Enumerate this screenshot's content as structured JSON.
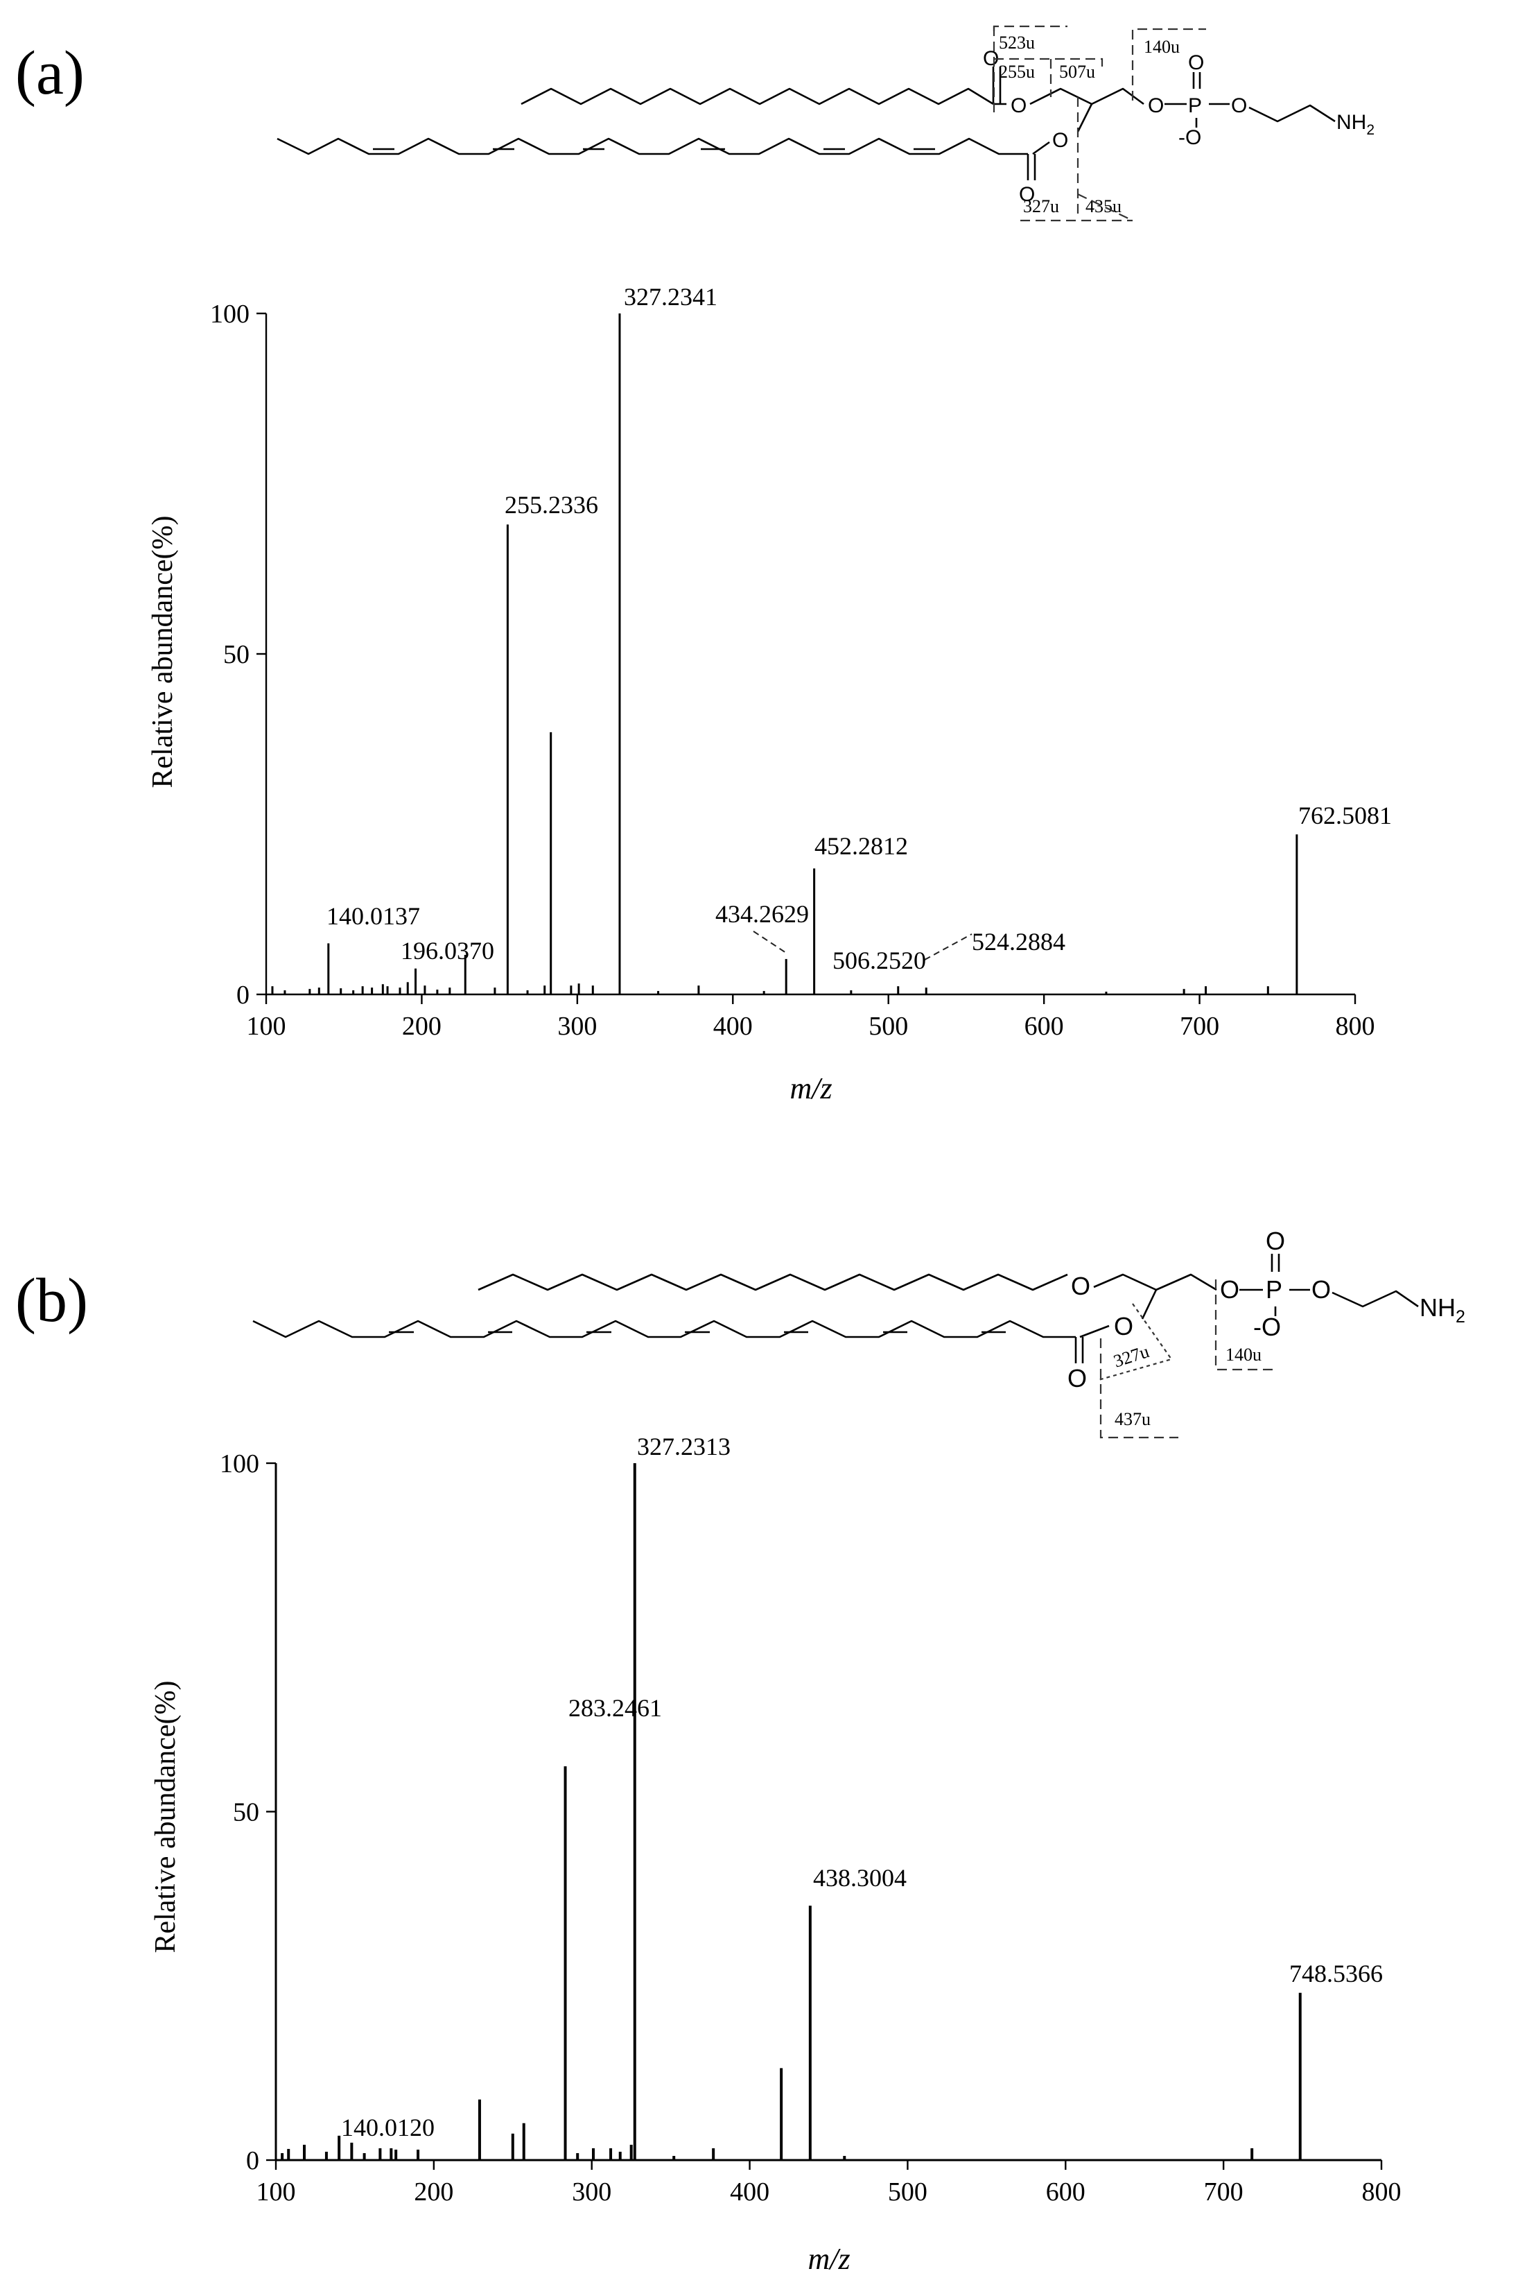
{
  "panels": [
    {
      "label": "(a)",
      "structure": {
        "fragments": [
          "523u",
          "255u",
          "507u",
          "140u",
          "327u",
          "435u"
        ],
        "atoms": {
          "carbonyl_o": "O",
          "ester_o": "O",
          "phos_o": "O",
          "p": "P",
          "o_minus": "-O",
          "o_link": "O",
          "amine": "NH",
          "amine_sub": "2"
        }
      },
      "chart_data": {
        "type": "bar",
        "xlabel": "m/z",
        "ylabel": "Relative abundance(%)",
        "xlim": [
          100,
          800
        ],
        "ylim": [
          0,
          100
        ],
        "xticks": [
          "100",
          "200",
          "300",
          "400",
          "500",
          "600",
          "700",
          "800"
        ],
        "yticks": [
          "0",
          "50",
          "100"
        ],
        "peaks": [
          {
            "x": 104,
            "y": 1.2
          },
          {
            "x": 112,
            "y": 0.6
          },
          {
            "x": 128,
            "y": 0.8
          },
          {
            "x": 134,
            "y": 1.0
          },
          {
            "x": 140.0137,
            "y": 7.5
          },
          {
            "x": 148,
            "y": 0.9
          },
          {
            "x": 156,
            "y": 0.6
          },
          {
            "x": 162,
            "y": 1.2
          },
          {
            "x": 168,
            "y": 1.0
          },
          {
            "x": 175,
            "y": 1.5
          },
          {
            "x": 178,
            "y": 1.2
          },
          {
            "x": 186,
            "y": 1.0
          },
          {
            "x": 191,
            "y": 1.8
          },
          {
            "x": 196.037,
            "y": 3.8
          },
          {
            "x": 202,
            "y": 1.3
          },
          {
            "x": 210,
            "y": 0.7
          },
          {
            "x": 218,
            "y": 1.0
          },
          {
            "x": 228,
            "y": 5.8
          },
          {
            "x": 247,
            "y": 1.0
          },
          {
            "x": 255.2336,
            "y": 69
          },
          {
            "x": 268,
            "y": 0.6
          },
          {
            "x": 279,
            "y": 1.3
          },
          {
            "x": 283,
            "y": 38.5
          },
          {
            "x": 296,
            "y": 1.3
          },
          {
            "x": 301,
            "y": 1.6
          },
          {
            "x": 310,
            "y": 1.3
          },
          {
            "x": 327.2341,
            "y": 100
          },
          {
            "x": 352,
            "y": 0.5
          },
          {
            "x": 378,
            "y": 1.3
          },
          {
            "x": 420,
            "y": 0.5
          },
          {
            "x": 434.2629,
            "y": 5.2
          },
          {
            "x": 452.2812,
            "y": 18.5
          },
          {
            "x": 476,
            "y": 0.6
          },
          {
            "x": 506.252,
            "y": 1.2
          },
          {
            "x": 524.2884,
            "y": 1.0
          },
          {
            "x": 640,
            "y": 0.4
          },
          {
            "x": 690,
            "y": 0.8
          },
          {
            "x": 704,
            "y": 1.2
          },
          {
            "x": 744,
            "y": 1.2
          },
          {
            "x": 762.5081,
            "y": 23.5
          }
        ],
        "annotations": [
          {
            "text": "327.2341",
            "x": 327.2341,
            "y": 100
          },
          {
            "text": "255.2336",
            "x": 255.2336,
            "y": 69
          },
          {
            "text": "762.5081",
            "x": 762.5081,
            "y": 23.5
          },
          {
            "text": "452.2812",
            "x": 452.2812,
            "y": 18.5
          },
          {
            "text": "434.2629",
            "x": 434.2629,
            "y": 5.2
          },
          {
            "text": "140.0137",
            "x": 140.0137,
            "y": 7.5
          },
          {
            "text": "196.0370",
            "x": 196.037,
            "y": 3.8
          },
          {
            "text": "506.2520",
            "x": 506.252,
            "y": 1.2
          },
          {
            "text": "524.2884",
            "x": 524.2884,
            "y": 1.0
          }
        ]
      }
    },
    {
      "label": "(b)",
      "structure": {
        "fragments": [
          "327u",
          "140u",
          "437u"
        ],
        "atoms": {
          "ether_o": "O",
          "carbonyl_o": "O",
          "ester_o": "O",
          "phos_o": "O",
          "p": "P",
          "o_minus": "-O",
          "o_link": "O",
          "amine": "NH",
          "amine_sub": "2"
        }
      },
      "chart_data": {
        "type": "bar",
        "xlabel": "m/z",
        "ylabel": "Relative abundance(%)",
        "xlim": [
          100,
          800
        ],
        "ylim": [
          0,
          100
        ],
        "xticks": [
          "100",
          "200",
          "300",
          "400",
          "500",
          "600",
          "700",
          "800"
        ],
        "yticks": [
          "0",
          "50",
          "100"
        ],
        "peaks": [
          {
            "x": 104,
            "y": 1.0
          },
          {
            "x": 108,
            "y": 1.6
          },
          {
            "x": 118,
            "y": 2.2
          },
          {
            "x": 132,
            "y": 1.2
          },
          {
            "x": 140.012,
            "y": 3.5
          },
          {
            "x": 148,
            "y": 2.5
          },
          {
            "x": 156,
            "y": 1.0
          },
          {
            "x": 166,
            "y": 1.7
          },
          {
            "x": 173,
            "y": 1.7
          },
          {
            "x": 176,
            "y": 1.5
          },
          {
            "x": 190,
            "y": 1.5
          },
          {
            "x": 229,
            "y": 8.7
          },
          {
            "x": 250,
            "y": 3.8
          },
          {
            "x": 257,
            "y": 5.3
          },
          {
            "x": 283.2461,
            "y": 56.5
          },
          {
            "x": 291,
            "y": 1.0
          },
          {
            "x": 301,
            "y": 1.7
          },
          {
            "x": 312,
            "y": 1.7
          },
          {
            "x": 318,
            "y": 1.2
          },
          {
            "x": 325,
            "y": 2.2
          },
          {
            "x": 327.2313,
            "y": 100
          },
          {
            "x": 352,
            "y": 0.6
          },
          {
            "x": 377,
            "y": 1.7
          },
          {
            "x": 420,
            "y": 13.2
          },
          {
            "x": 438.3004,
            "y": 36.5
          },
          {
            "x": 460,
            "y": 0.6
          },
          {
            "x": 718,
            "y": 1.7
          },
          {
            "x": 748.5366,
            "y": 24
          }
        ],
        "annotations": [
          {
            "text": "327.2313",
            "x": 327.2313,
            "y": 100
          },
          {
            "text": "283.2461",
            "x": 283.2461,
            "y": 56.5
          },
          {
            "text": "438.3004",
            "x": 438.3004,
            "y": 36.5
          },
          {
            "text": "748.5366",
            "x": 748.5366,
            "y": 24
          },
          {
            "text": "140.0120",
            "x": 140.012,
            "y": 3.5
          }
        ]
      }
    }
  ]
}
